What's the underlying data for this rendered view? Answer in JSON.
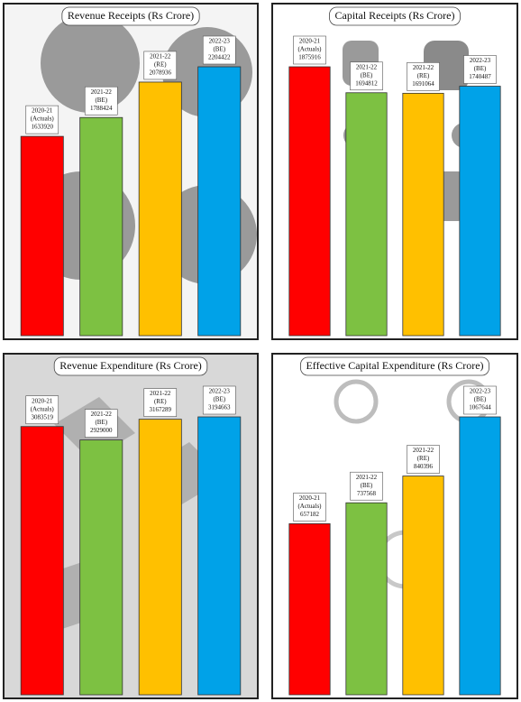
{
  "chart_data": [
    {
      "type": "bar",
      "title": "Revenue Receipts (Rs Crore)",
      "categories": [
        "2020-21",
        "2021-22",
        "2021-22",
        "2022-23"
      ],
      "stages": [
        "(Actuals)",
        "(BE)",
        "(RE)",
        "(BE)"
      ],
      "values": [
        1633920,
        1788424,
        2078936,
        2204422
      ],
      "colors": [
        "#ff0000",
        "#7dc142",
        "#ffc000",
        "#00a2e8"
      ]
    },
    {
      "type": "bar",
      "title": "Capital Receipts (Rs Crore)",
      "categories": [
        "2020-21",
        "2021-22",
        "2021-22",
        "2022-23"
      ],
      "stages": [
        "(Actuals)",
        "(BE)",
        "(RE)",
        "(BE)"
      ],
      "values": [
        1875916,
        1694812,
        1691064,
        1740487
      ],
      "colors": [
        "#ff0000",
        "#7dc142",
        "#ffc000",
        "#00a2e8"
      ]
    },
    {
      "type": "bar",
      "title": "Revenue Expenditure (Rs Crore)",
      "categories": [
        "2020-21",
        "2021-22",
        "2021-22",
        "2022-23"
      ],
      "stages": [
        "(Actuals)",
        "(BE)",
        "(RE)",
        "(BE)"
      ],
      "values": [
        3083519,
        2929000,
        3167289,
        3194663
      ],
      "colors": [
        "#ff0000",
        "#7dc142",
        "#ffc000",
        "#00a2e8"
      ]
    },
    {
      "type": "bar",
      "title": "Effective Capital Expenditure (Rs Crore)",
      "categories": [
        "2020-21",
        "2021-22",
        "2021-22",
        "2022-23"
      ],
      "stages": [
        "(Actuals)",
        "(BE)",
        "(RE)",
        "(BE)"
      ],
      "values": [
        657182,
        737568,
        840396,
        1067644
      ],
      "colors": [
        "#ff0000",
        "#7dc142",
        "#ffc000",
        "#00a2e8"
      ]
    }
  ]
}
